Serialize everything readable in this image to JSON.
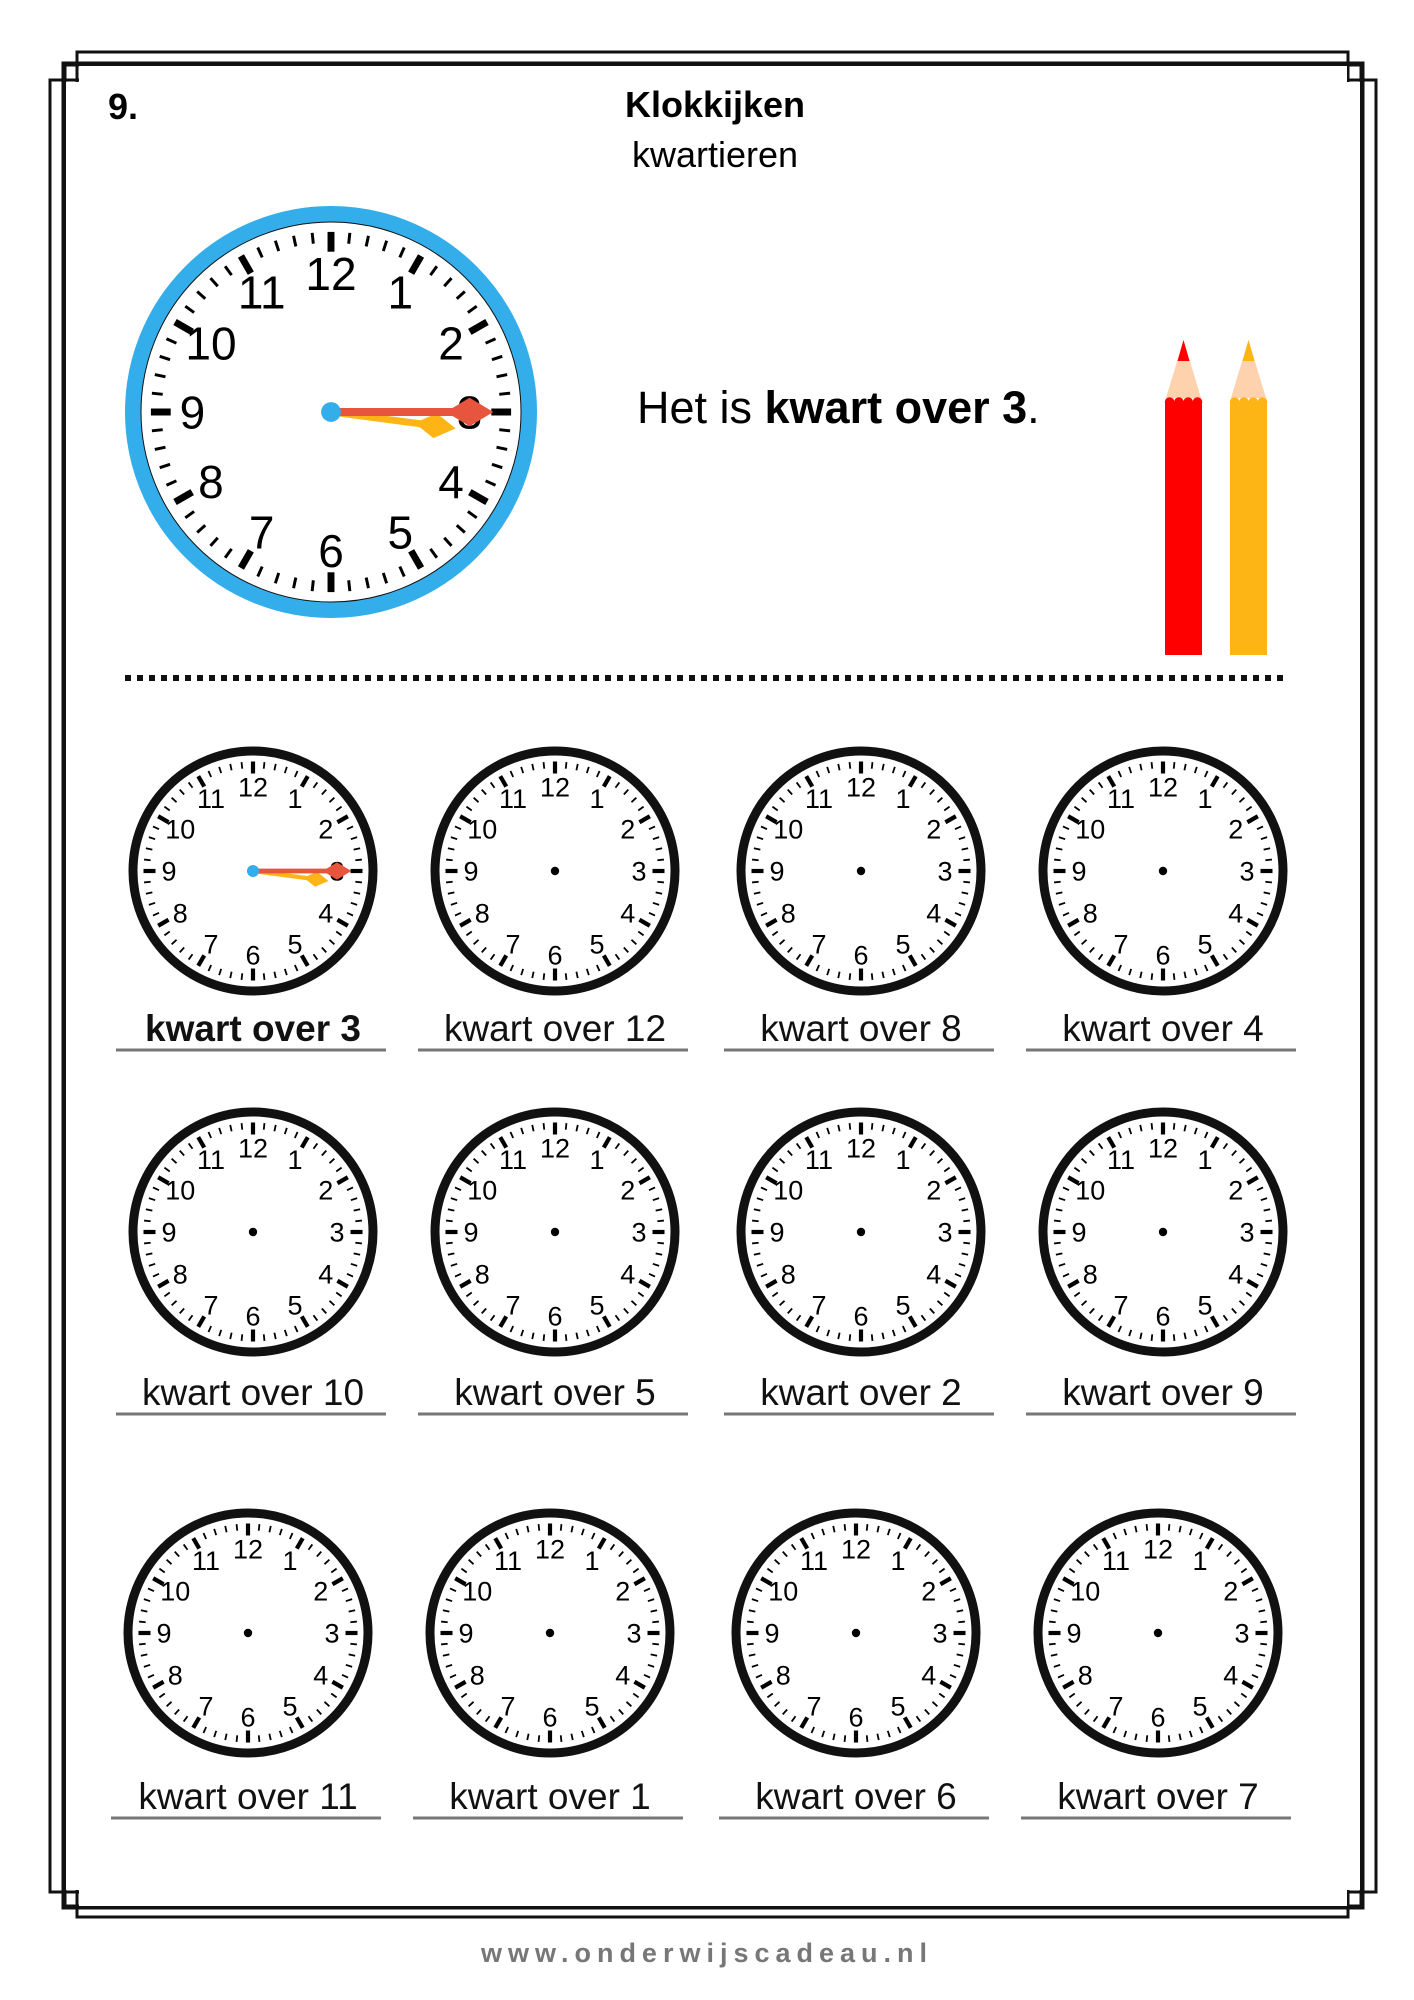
{
  "header": {
    "number": "9.",
    "title": "Klokkijken",
    "subtitle": "kwartieren"
  },
  "example": {
    "sentence_prefix": "Het is ",
    "sentence_bold": "kwart over 3",
    "sentence_suffix": ".",
    "time": {
      "hour": 3,
      "minute": 15
    }
  },
  "colors": {
    "clock_rim": "#33AEEA",
    "minute_hand": "#E8553E",
    "hour_hand": "#FDB515",
    "pencil_red": "#FF0000",
    "pencil_orange": "#FDB515",
    "pencil_wood": "#FFD2AE"
  },
  "exercises": [
    {
      "label": "kwart over 3",
      "answered": true,
      "hour": 3,
      "minute": 15
    },
    {
      "label": "kwart over 12"
    },
    {
      "label": "kwart over 8"
    },
    {
      "label": "kwart over 4"
    },
    {
      "label": "kwart over 10"
    },
    {
      "label": "kwart over 5"
    },
    {
      "label": "kwart over 2"
    },
    {
      "label": "kwart over 9"
    },
    {
      "label": "kwart over 11"
    },
    {
      "label": "kwart over 1"
    },
    {
      "label": "kwart over 6"
    },
    {
      "label": "kwart over 7"
    }
  ],
  "footer": "www.onderwijscadeau.nl"
}
